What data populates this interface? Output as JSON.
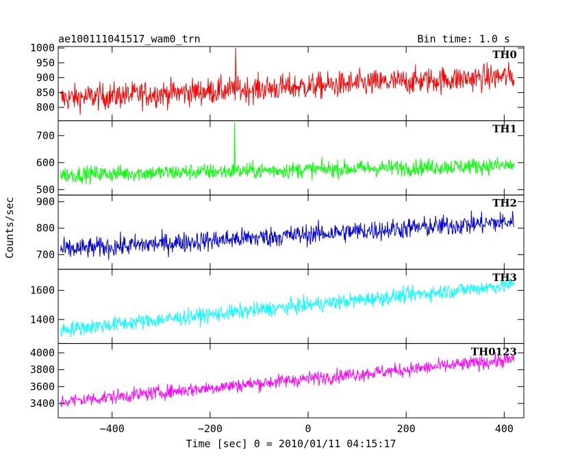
{
  "chart_data": {
    "type": "line",
    "title": "ae100111041517_wam0_trn",
    "subtitle": "Bin time: 1.0 s",
    "xlabel": "Time [sec] 0 = 2010/01/11 04:15:17",
    "ylabel": "Counts/sec",
    "xlim": [
      -510,
      440
    ],
    "x_range": [
      -505,
      420
    ],
    "xticks": [
      -400,
      -200,
      0,
      200,
      400
    ],
    "xtick_labels": [
      "−400",
      "−200",
      "0",
      "200",
      "400"
    ],
    "panels": [
      {
        "name": "TH0",
        "color": "#ff0000",
        "ylim": [
          755,
          1005
        ],
        "yticks": [
          800,
          850,
          900,
          950,
          1000
        ],
        "trend_start": 830,
        "trend_end": 905,
        "noise": 32,
        "spike_at": -148,
        "spike_value": 1000
      },
      {
        "name": "TH1",
        "color": "#00ff00",
        "ylim": [
          480,
          755
        ],
        "yticks": [
          500,
          600,
          700
        ],
        "trend_start": 555,
        "trend_end": 590,
        "noise": 22,
        "spike_at": -150,
        "spike_value": 750
      },
      {
        "name": "TH2",
        "color": "#0000dd",
        "ylim": [
          645,
          925
        ],
        "yticks": [
          700,
          800,
          900
        ],
        "trend_start": 718,
        "trend_end": 825,
        "noise": 28,
        "spike_at": null,
        "spike_value": null
      },
      {
        "name": "TH3",
        "color": "#00ffff",
        "ylim": [
          1235,
          1745
        ],
        "yticks": [
          1400,
          1600
        ],
        "trend_start": 1330,
        "trend_end": 1640,
        "noise": 38,
        "spike_at": null,
        "spike_value": null
      },
      {
        "name": "TH0123",
        "color": "#ff00ff",
        "ylim": [
          3230,
          4110
        ],
        "yticks": [
          3400,
          3600,
          3800,
          4000
        ],
        "trend_start": 3420,
        "trend_end": 3920,
        "noise": 60,
        "spike_at": null,
        "spike_value": null
      }
    ]
  }
}
